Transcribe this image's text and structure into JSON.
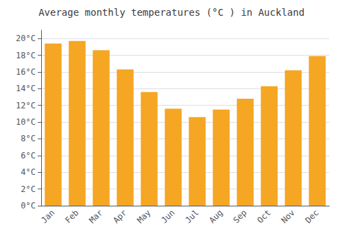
{
  "chart_data": {
    "type": "bar",
    "title": "Average monthly temperatures (°C ) in Auckland",
    "categories": [
      "Jan",
      "Feb",
      "Mar",
      "Apr",
      "May",
      "Jun",
      "Jul",
      "Aug",
      "Sep",
      "Oct",
      "Nov",
      "Dec"
    ],
    "values": [
      19.4,
      19.7,
      18.6,
      16.3,
      13.6,
      11.6,
      10.6,
      11.5,
      12.8,
      14.3,
      16.2,
      17.9
    ],
    "color": "#F5A623",
    "ylim": [
      0,
      21
    ],
    "yticks": [
      {
        "value": 0,
        "label": "0°C"
      },
      {
        "value": 2,
        "label": "2°C"
      },
      {
        "value": 4,
        "label": "4°C"
      },
      {
        "value": 6,
        "label": "6°C"
      },
      {
        "value": 8,
        "label": "8°C"
      },
      {
        "value": 10,
        "label": "10°C"
      },
      {
        "value": 12,
        "label": "12°C"
      },
      {
        "value": 14,
        "label": "14°C"
      },
      {
        "value": 16,
        "label": "16°C"
      },
      {
        "value": 18,
        "label": "18°C"
      },
      {
        "value": 20,
        "label": "20°C"
      }
    ],
    "grid": true
  }
}
